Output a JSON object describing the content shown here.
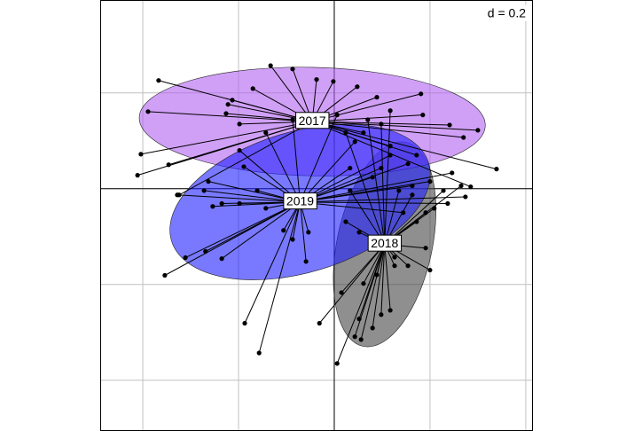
{
  "chart_data": {
    "type": "scatter",
    "grid_label": "d = 0.2",
    "xlim": [
      -0.489,
      0.415
    ],
    "ylim": [
      -0.506,
      0.394
    ],
    "xticks": [
      -0.4,
      -0.2,
      0,
      0.2,
      0.4
    ],
    "yticks": [
      -0.4,
      -0.2,
      0,
      0.2
    ],
    "grid": true,
    "series": [
      {
        "name": "2018",
        "color": "#444444",
        "x": [
          0.006,
          0.043,
          0.056,
          0.052,
          0.08,
          0.098,
          0.117,
          0.089,
          0.061,
          0.015,
          -0.031,
          0.126,
          0.154,
          0.2,
          0.191,
          0.172,
          0.191,
          0.209,
          0.163,
          0.135,
          0.228,
          0.265,
          0.052,
          0.024,
          0.033,
          0.024,
          0.07,
          0.117,
          0.098,
          0.126,
          0.098
        ],
        "values": [
          -0.365,
          -0.309,
          -0.315,
          -0.272,
          -0.291,
          -0.263,
          -0.254,
          -0.18,
          -0.198,
          -0.217,
          -0.281,
          -0.161,
          -0.161,
          -0.17,
          -0.124,
          -0.069,
          -0.05,
          -0.041,
          -0.013,
          -0.004,
          -0.004,
          0.006,
          -0.091,
          -0.069,
          -0.004,
          0.117,
          0.144,
          0.163,
          0.135,
          -0.143,
          -0.115
        ]
      },
      {
        "name": "2017",
        "color": "#b060f0",
        "x": [
          -0.367,
          -0.389,
          -0.404,
          -0.411,
          -0.346,
          -0.324,
          -0.222,
          -0.213,
          -0.198,
          -0.133,
          -0.087,
          -0.037,
          -0.002,
          0.048,
          0.089,
          0.181,
          0.185,
          0.241,
          0.27,
          0.3,
          0.339,
          0.285,
          0.172,
          0.117,
          0.061,
          -0.226,
          -0.17
        ],
        "values": [
          0.226,
          0.161,
          0.072,
          0.028,
          0.05,
          -0.013,
          0.176,
          0.185,
          0.135,
          0.257,
          0.25,
          0.228,
          0.224,
          0.213,
          0.191,
          0.198,
          0.154,
          0.133,
          0.107,
          0.122,
          0.041,
          0.004,
          0.07,
          0.089,
          0.117,
          0.157,
          0.209
        ]
      },
      {
        "name": "2019",
        "color": "#2020ff",
        "x": [
          -0.354,
          -0.311,
          -0.269,
          -0.235,
          -0.328,
          -0.263,
          -0.254,
          -0.198,
          -0.161,
          -0.143,
          -0.106,
          -0.087,
          -0.054,
          -0.059,
          -0.189,
          -0.272,
          0.033,
          0.08,
          0.098,
          0.154,
          0.163,
          0.2,
          0.246,
          0.274,
          0.237,
          0.144,
          0.117,
          -0.235,
          -0.157,
          -0.187,
          -0.143,
          -0.087,
          0.043,
          0.006,
          -0.198
        ],
        "values": [
          -0.181,
          -0.144,
          -0.131,
          -0.146,
          -0.013,
          0.015,
          -0.037,
          -0.031,
          -0.004,
          -0.041,
          -0.087,
          -0.106,
          -0.091,
          -0.152,
          0.046,
          -0.004,
          0.043,
          0.024,
          0.043,
          0.052,
          0.006,
          0.015,
          0.033,
          -0.017,
          -0.031,
          -0.05,
          0.07,
          -0.031,
          -0.343,
          -0.281,
          0.117,
          0.144,
          0.098,
          0.154,
          0.08
        ]
      }
    ]
  }
}
